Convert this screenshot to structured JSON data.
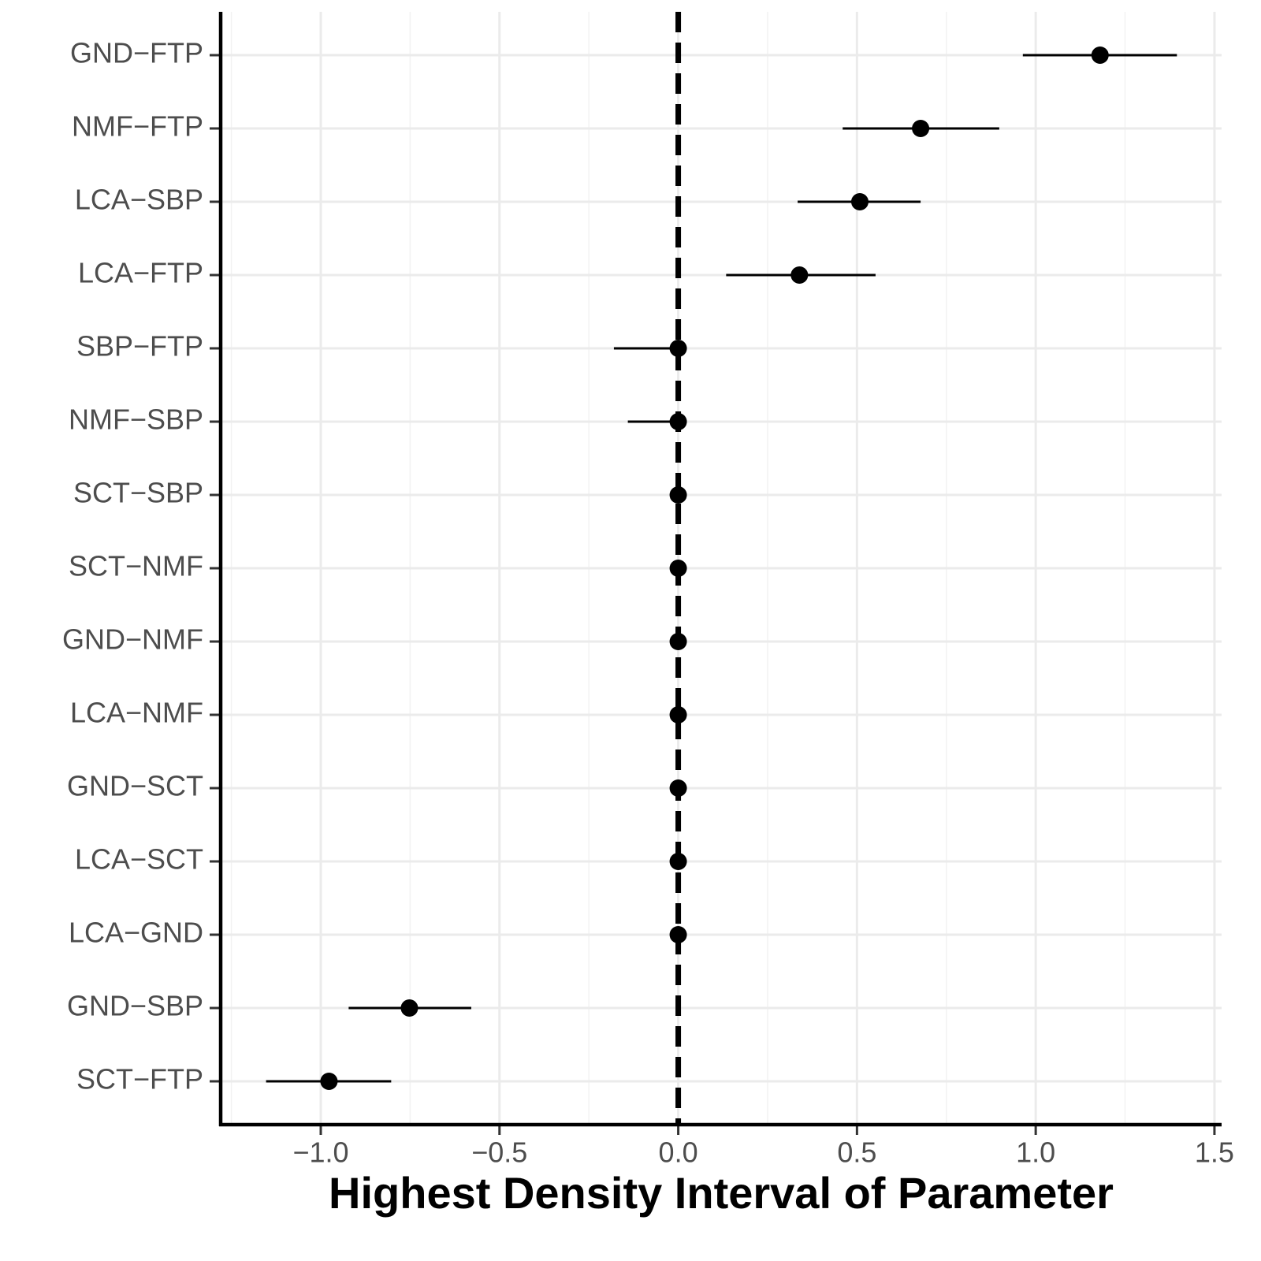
{
  "chart_data": {
    "type": "pointrange",
    "x_label": "Highest Density Interval of Parameter",
    "categories": [
      "GND−FTP",
      "NMF−FTP",
      "LCA−SBP",
      "LCA−FTP",
      "SBP−FTP",
      "NMF−SBP",
      "SCT−SBP",
      "SCT−NMF",
      "GND−NMF",
      "LCA−NMF",
      "GND−SCT",
      "LCA−SCT",
      "LCA−GND",
      "GND−SBP",
      "SCT−FTP"
    ],
    "values": [
      1.18,
      0.678,
      0.508,
      0.339,
      0,
      0,
      0,
      0,
      0,
      0,
      0,
      0,
      0,
      -0.752,
      -0.977
    ],
    "lower": [
      0.964,
      0.46,
      0.334,
      0.134,
      -0.18,
      -0.141,
      0,
      0,
      0,
      0,
      0,
      0,
      0,
      -0.922,
      -1.153
    ],
    "upper": [
      1.395,
      0.898,
      0.678,
      0.552,
      0,
      0,
      0,
      0,
      0,
      0,
      0,
      0,
      0,
      -0.579,
      -0.803
    ],
    "color": "#000000",
    "xlim": [
      -1.28,
      1.52
    ],
    "xticks": [
      {
        "value": -1,
        "label": "−1.0"
      },
      {
        "value": -0.5,
        "label": "−0.5"
      },
      {
        "value": 0,
        "label": "0.0"
      },
      0.5,
      {
        "value": 1,
        "label": "1.0"
      },
      1.5
    ],
    "ref_line": 0,
    "grid": true
  }
}
